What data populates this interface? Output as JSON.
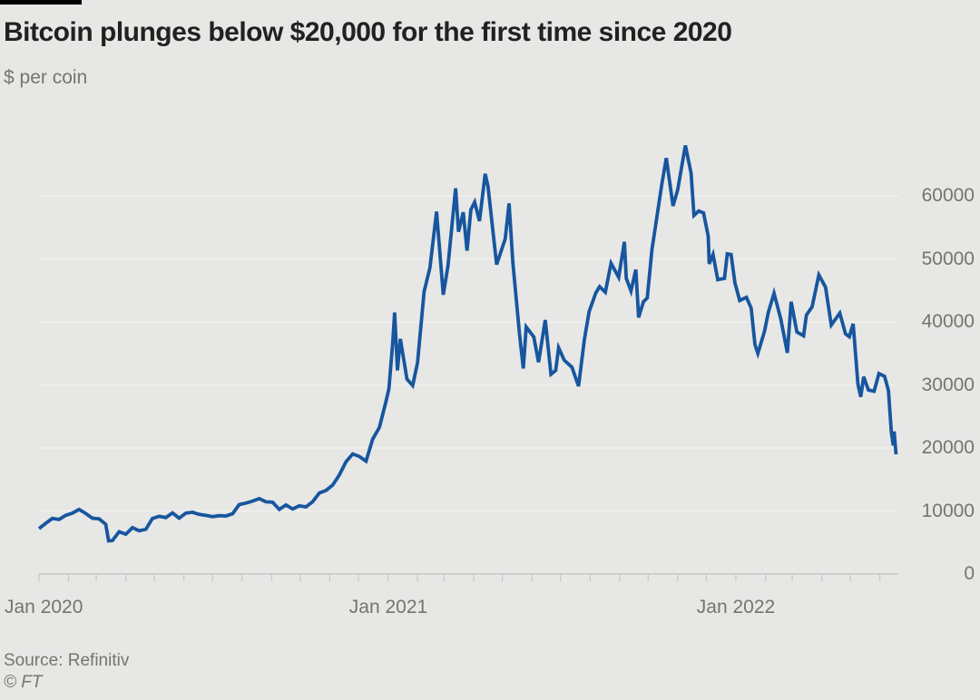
{
  "header": {
    "title": "Bitcoin plunges below $20,000 for the first time since 2020",
    "subtitle": "$ per coin"
  },
  "footer": {
    "source": "Source: Refinitiv",
    "copyright": "© FT"
  },
  "colors": {
    "background": "#e7e7e6",
    "line": "#17569e",
    "title_text": "#232120",
    "muted_text": "#75746f",
    "axis_line": "#c7c7c5",
    "gridline": "#f0f0ee",
    "top_bar": "#000000"
  },
  "chart_data": {
    "type": "line",
    "title": "Bitcoin plunges below $20,000 for the first time since 2020",
    "ylabel": "$ per coin",
    "grid": "horizontal",
    "legend": "none",
    "y_axis": {
      "side": "right",
      "range": [
        0,
        70000
      ],
      "ticks": [
        0,
        10000,
        20000,
        30000,
        40000,
        50000,
        60000
      ]
    },
    "x_axis": {
      "range": [
        "2020-01-01",
        "2022-06-30"
      ],
      "tick_interval": "monthly",
      "labels": [
        {
          "text": "Jan 2020",
          "date": "2020-01-01"
        },
        {
          "text": "Jan 2021",
          "date": "2021-01-01"
        },
        {
          "text": "Jan 2022",
          "date": "2022-01-01"
        }
      ]
    },
    "series": [
      {
        "name": "Bitcoin price, $ per coin",
        "color": "#17569e",
        "points": [
          [
            "2020-01-01",
            7200
          ],
          [
            "2020-01-08",
            8050
          ],
          [
            "2020-01-15",
            8800
          ],
          [
            "2020-01-22",
            8650
          ],
          [
            "2020-01-29",
            9300
          ],
          [
            "2020-02-05",
            9650
          ],
          [
            "2020-02-12",
            10250
          ],
          [
            "2020-02-19",
            9600
          ],
          [
            "2020-02-26",
            8850
          ],
          [
            "2020-03-04",
            8750
          ],
          [
            "2020-03-11",
            7900
          ],
          [
            "2020-03-14",
            5250
          ],
          [
            "2020-03-18",
            5300
          ],
          [
            "2020-03-25",
            6700
          ],
          [
            "2020-04-01",
            6300
          ],
          [
            "2020-04-08",
            7350
          ],
          [
            "2020-04-15",
            6850
          ],
          [
            "2020-04-22",
            7100
          ],
          [
            "2020-04-29",
            8800
          ],
          [
            "2020-05-06",
            9150
          ],
          [
            "2020-05-13",
            8950
          ],
          [
            "2020-05-20",
            9700
          ],
          [
            "2020-05-27",
            8850
          ],
          [
            "2020-06-03",
            9650
          ],
          [
            "2020-06-10",
            9800
          ],
          [
            "2020-06-17",
            9450
          ],
          [
            "2020-06-24",
            9300
          ],
          [
            "2020-07-01",
            9100
          ],
          [
            "2020-07-08",
            9250
          ],
          [
            "2020-07-15",
            9200
          ],
          [
            "2020-07-22",
            9550
          ],
          [
            "2020-07-29",
            11000
          ],
          [
            "2020-08-05",
            11250
          ],
          [
            "2020-08-12",
            11550
          ],
          [
            "2020-08-19",
            11950
          ],
          [
            "2020-08-26",
            11450
          ],
          [
            "2020-09-02",
            11400
          ],
          [
            "2020-09-09",
            10250
          ],
          [
            "2020-09-16",
            10950
          ],
          [
            "2020-09-23",
            10300
          ],
          [
            "2020-09-30",
            10800
          ],
          [
            "2020-10-07",
            10650
          ],
          [
            "2020-10-14",
            11450
          ],
          [
            "2020-10-21",
            12850
          ],
          [
            "2020-10-28",
            13250
          ],
          [
            "2020-11-04",
            14100
          ],
          [
            "2020-11-11",
            15700
          ],
          [
            "2020-11-18",
            17800
          ],
          [
            "2020-11-25",
            19050
          ],
          [
            "2020-12-02",
            18650
          ],
          [
            "2020-12-09",
            17900
          ],
          [
            "2020-12-16",
            21400
          ],
          [
            "2020-12-23",
            23250
          ],
          [
            "2020-12-30",
            27400
          ],
          [
            "2021-01-02",
            29400
          ],
          [
            "2021-01-06",
            36700
          ],
          [
            "2021-01-08",
            41500
          ],
          [
            "2021-01-11",
            32300
          ],
          [
            "2021-01-14",
            37300
          ],
          [
            "2021-01-21",
            30900
          ],
          [
            "2021-01-27",
            29900
          ],
          [
            "2021-02-01",
            33500
          ],
          [
            "2021-02-08",
            44800
          ],
          [
            "2021-02-14",
            48600
          ],
          [
            "2021-02-21",
            57500
          ],
          [
            "2021-02-28",
            44300
          ],
          [
            "2021-03-05",
            48900
          ],
          [
            "2021-03-13",
            61200
          ],
          [
            "2021-03-16",
            54300
          ],
          [
            "2021-03-21",
            57400
          ],
          [
            "2021-03-25",
            51300
          ],
          [
            "2021-03-29",
            57800
          ],
          [
            "2021-04-02",
            59000
          ],
          [
            "2021-04-07",
            56000
          ],
          [
            "2021-04-13",
            63500
          ],
          [
            "2021-04-16",
            61500
          ],
          [
            "2021-04-25",
            49100
          ],
          [
            "2021-05-04",
            53200
          ],
          [
            "2021-05-08",
            58800
          ],
          [
            "2021-05-12",
            49400
          ],
          [
            "2021-05-19",
            38100
          ],
          [
            "2021-05-23",
            32600
          ],
          [
            "2021-05-26",
            39200
          ],
          [
            "2021-06-03",
            37600
          ],
          [
            "2021-06-08",
            33600
          ],
          [
            "2021-06-15",
            40300
          ],
          [
            "2021-06-21",
            31700
          ],
          [
            "2021-06-26",
            32300
          ],
          [
            "2021-06-29",
            35900
          ],
          [
            "2021-07-05",
            33900
          ],
          [
            "2021-07-13",
            32800
          ],
          [
            "2021-07-20",
            29800
          ],
          [
            "2021-07-26",
            37200
          ],
          [
            "2021-07-31",
            41600
          ],
          [
            "2021-08-07",
            44600
          ],
          [
            "2021-08-11",
            45600
          ],
          [
            "2021-08-17",
            44700
          ],
          [
            "2021-08-23",
            49300
          ],
          [
            "2021-08-31",
            47100
          ],
          [
            "2021-09-06",
            52700
          ],
          [
            "2021-09-08",
            46900
          ],
          [
            "2021-09-13",
            44900
          ],
          [
            "2021-09-18",
            48300
          ],
          [
            "2021-09-21",
            40700
          ],
          [
            "2021-09-26",
            43200
          ],
          [
            "2021-09-30",
            43800
          ],
          [
            "2021-10-05",
            51500
          ],
          [
            "2021-10-11",
            57500
          ],
          [
            "2021-10-15",
            61600
          ],
          [
            "2021-10-20",
            66000
          ],
          [
            "2021-10-27",
            58400
          ],
          [
            "2021-11-01",
            61000
          ],
          [
            "2021-11-09",
            68000
          ],
          [
            "2021-11-15",
            63600
          ],
          [
            "2021-11-18",
            56900
          ],
          [
            "2021-11-23",
            57600
          ],
          [
            "2021-11-28",
            57300
          ],
          [
            "2021-12-03",
            53600
          ],
          [
            "2021-12-04",
            49200
          ],
          [
            "2021-12-08",
            50700
          ],
          [
            "2021-12-13",
            46700
          ],
          [
            "2021-12-20",
            46900
          ],
          [
            "2021-12-23",
            50800
          ],
          [
            "2021-12-27",
            50700
          ],
          [
            "2021-12-31",
            46200
          ],
          [
            "2022-01-05",
            43400
          ],
          [
            "2022-01-12",
            43900
          ],
          [
            "2022-01-17",
            42200
          ],
          [
            "2022-01-21",
            36400
          ],
          [
            "2022-01-24",
            35000
          ],
          [
            "2022-01-31",
            38500
          ],
          [
            "2022-02-04",
            41500
          ],
          [
            "2022-02-10",
            44550
          ],
          [
            "2022-02-17",
            40500
          ],
          [
            "2022-02-24",
            35100
          ],
          [
            "2022-02-28",
            43200
          ],
          [
            "2022-03-06",
            38400
          ],
          [
            "2022-03-13",
            37800
          ],
          [
            "2022-03-16",
            41100
          ],
          [
            "2022-03-22",
            42400
          ],
          [
            "2022-03-29",
            47450
          ],
          [
            "2022-04-05",
            45500
          ],
          [
            "2022-04-11",
            39500
          ],
          [
            "2022-04-20",
            41400
          ],
          [
            "2022-04-26",
            38100
          ],
          [
            "2022-04-30",
            37650
          ],
          [
            "2022-05-04",
            39700
          ],
          [
            "2022-05-09",
            30100
          ],
          [
            "2022-05-12",
            28100
          ],
          [
            "2022-05-15",
            31300
          ],
          [
            "2022-05-20",
            29200
          ],
          [
            "2022-05-26",
            29000
          ],
          [
            "2022-05-31",
            31800
          ],
          [
            "2022-06-06",
            31350
          ],
          [
            "2022-06-10",
            29100
          ],
          [
            "2022-06-13",
            22500
          ],
          [
            "2022-06-15",
            20400
          ],
          [
            "2022-06-16",
            22600
          ],
          [
            "2022-06-18",
            19000
          ]
        ]
      }
    ]
  }
}
